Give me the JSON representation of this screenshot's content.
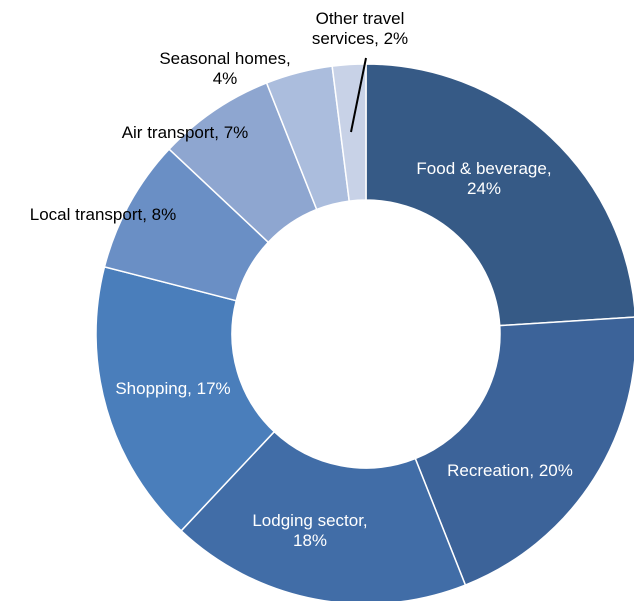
{
  "chart_data": {
    "type": "donut",
    "values": [
      24,
      20,
      18,
      17,
      8,
      7,
      4,
      2
    ],
    "value_labels": [
      "Food & beverage,\n24%",
      "Recreation, 20%",
      "Lodging sector,\n18%",
      "Shopping, 17%",
      "Local transport, 8%",
      "Air transport, 7%",
      "Seasonal homes,\n4%",
      "Other travel\nservices, 2%"
    ],
    "colors": [
      "#365a86",
      "#3c6399",
      "#416da7",
      "#4a7ebb",
      "#6a8fc5",
      "#8ea6d0",
      "#abbddd",
      "#c8d2e7"
    ]
  }
}
